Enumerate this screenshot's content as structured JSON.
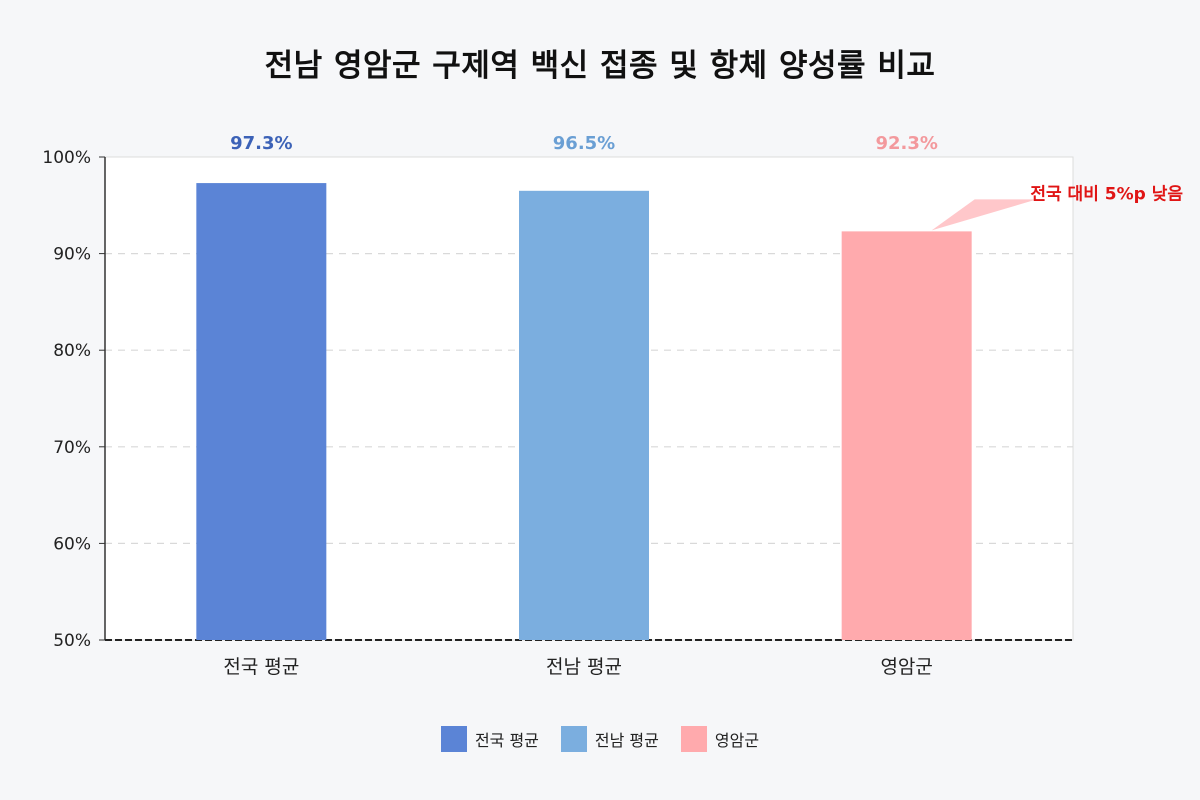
{
  "chart_data": {
    "type": "bar",
    "title": "전남 영암군 구제역 백신 접종 및 항체 양성률 비교",
    "categories": [
      "전국 평균",
      "전남 평균",
      "영암군"
    ],
    "values": [
      97.3,
      96.5,
      92.3
    ],
    "value_labels": [
      "97.3%",
      "96.5%",
      "92.3%"
    ],
    "colors": [
      "#5b84d6",
      "#7baedf",
      "#ffaaad"
    ],
    "label_colors": [
      "#3c62b7",
      "#6a9fd4",
      "#f3999d"
    ],
    "ylim": [
      50,
      100
    ],
    "yticks": [
      50,
      60,
      70,
      80,
      90,
      100
    ],
    "ytick_labels": [
      "50%",
      "60%",
      "70%",
      "80%",
      "90%",
      "100%"
    ],
    "grid": true,
    "legend": {
      "placement": "bottom",
      "entries": [
        "전국 평균",
        "전남 평균",
        "영암군"
      ]
    },
    "annotation": {
      "text": "전국 대비 5%p 낮음",
      "target_category": "영암군",
      "color": "#e01515",
      "callout_color": "#ffc7ca"
    }
  }
}
